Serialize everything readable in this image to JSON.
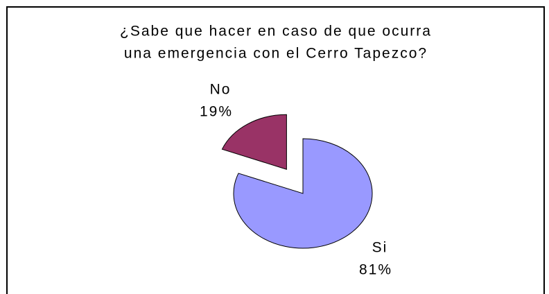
{
  "chart_data": {
    "type": "pie",
    "title": [
      "¿Sabe que hacer en caso de que ocurra",
      "una emergencia con el Cerro Tapezco?"
    ],
    "categories": [
      "Si",
      "No"
    ],
    "values": [
      81,
      19
    ],
    "value_labels": [
      "81%",
      "19%"
    ],
    "colors": [
      "#9999ff",
      "#993366"
    ],
    "exploded": [
      false,
      true
    ]
  }
}
